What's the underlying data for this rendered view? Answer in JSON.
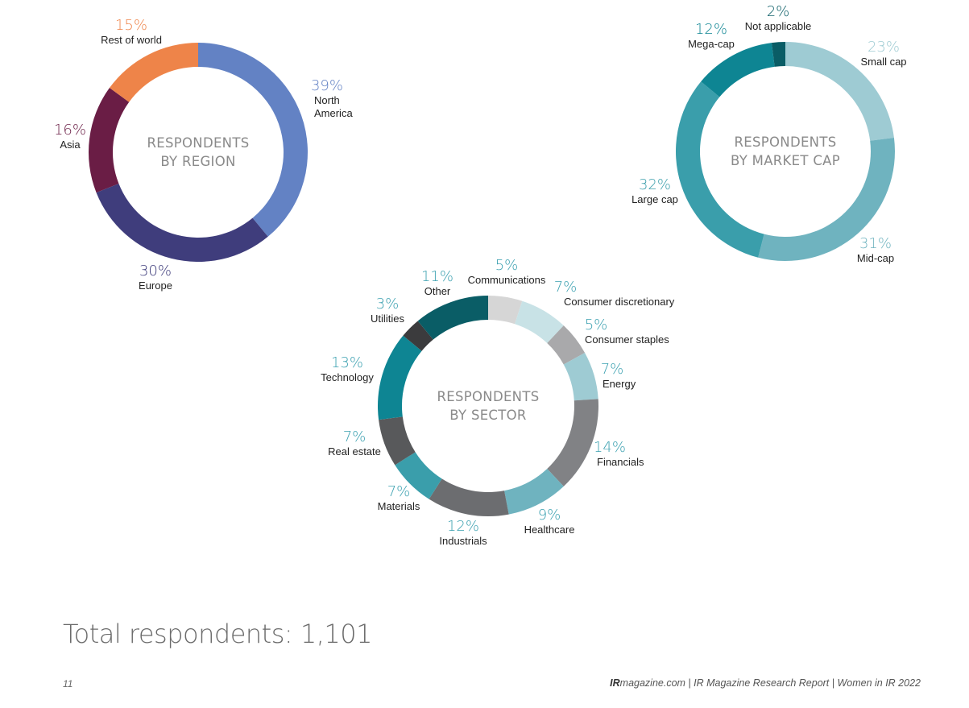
{
  "colors": {
    "pct_default": "#3aa0b0",
    "label": "#222222",
    "center_text": "#8a8a8a"
  },
  "chart_data": [
    {
      "type": "pie",
      "center_lines": [
        "RESPONDENTS",
        "BY REGION"
      ],
      "slices": [
        {
          "label": "North America",
          "label_lines": [
            "North",
            "America"
          ],
          "pct_text": "39%",
          "value": 39,
          "color": "#6382c4",
          "pct_color": "#6382c4"
        },
        {
          "label": "Europe",
          "label_lines": [
            "Europe"
          ],
          "pct_text": "30%",
          "value": 30,
          "color": "#3f3d7c",
          "pct_color": "#3f3d7c"
        },
        {
          "label": "Asia",
          "label_lines": [
            "Asia"
          ],
          "pct_text": "16%",
          "value": 16,
          "color": "#6a1d45",
          "pct_color": "#6a1d45"
        },
        {
          "label": "Rest of world",
          "label_lines": [
            "Rest of world"
          ],
          "pct_text": "15%",
          "value": 15,
          "color": "#ee8449",
          "pct_color": "#ee8449"
        }
      ]
    },
    {
      "type": "pie",
      "center_lines": [
        "RESPONDENTS",
        "BY MARKET CAP"
      ],
      "slices": [
        {
          "label": "Small cap",
          "label_lines": [
            "Small cap"
          ],
          "pct_text": "23%",
          "value": 23,
          "color": "#9ecbd3",
          "pct_color": "#9ecbd3"
        },
        {
          "label": "Mid-cap",
          "label_lines": [
            "Mid-cap"
          ],
          "pct_text": "31%",
          "value": 31,
          "color": "#6fb3bf",
          "pct_color": "#6fb3bf"
        },
        {
          "label": "Large cap",
          "label_lines": [
            "Large cap"
          ],
          "pct_text": "32%",
          "value": 32,
          "color": "#3a9eab",
          "pct_color": "#3a9eab"
        },
        {
          "label": "Mega-cap",
          "label_lines": [
            "Mega-cap"
          ],
          "pct_text": "12%",
          "value": 12,
          "color": "#0e8593",
          "pct_color": "#0e8593"
        },
        {
          "label": "Not applicable",
          "label_lines": [
            "Not applicable"
          ],
          "pct_text": "2%",
          "value": 2,
          "color": "#0a5d66",
          "pct_color": "#0a5d66"
        }
      ]
    },
    {
      "type": "pie",
      "center_lines": [
        "RESPONDENTS",
        "BY SECTOR"
      ],
      "slices": [
        {
          "label": "Communications",
          "label_lines": [
            "Communications"
          ],
          "pct_text": "5%",
          "value": 5,
          "color": "#d6d6d6",
          "pct_color": "#3aa0b0"
        },
        {
          "label": "Consumer discretionary",
          "label_lines": [
            "Consumer discretionary"
          ],
          "pct_text": "7%",
          "value": 7,
          "color": "#c8e2e6",
          "pct_color": "#3aa0b0"
        },
        {
          "label": "Consumer staples",
          "label_lines": [
            "Consumer staples"
          ],
          "pct_text": "5%",
          "value": 5,
          "color": "#a9a9ab",
          "pct_color": "#3aa0b0"
        },
        {
          "label": "Energy",
          "label_lines": [
            "Energy"
          ],
          "pct_text": "7%",
          "value": 7,
          "color": "#9ecbd3",
          "pct_color": "#3aa0b0"
        },
        {
          "label": "Financials",
          "label_lines": [
            "Financials"
          ],
          "pct_text": "14%",
          "value": 14,
          "color": "#818285",
          "pct_color": "#3aa0b0"
        },
        {
          "label": "Healthcare",
          "label_lines": [
            "Healthcare"
          ],
          "pct_text": "9%",
          "value": 9,
          "color": "#6fb3bf",
          "pct_color": "#3aa0b0"
        },
        {
          "label": "Industrials",
          "label_lines": [
            "Industrials"
          ],
          "pct_text": "12%",
          "value": 12,
          "color": "#6c6d70",
          "pct_color": "#3aa0b0"
        },
        {
          "label": "Materials",
          "label_lines": [
            "Materials"
          ],
          "pct_text": "7%",
          "value": 7,
          "color": "#3a9eab",
          "pct_color": "#3aa0b0"
        },
        {
          "label": "Real estate",
          "label_lines": [
            "Real estate"
          ],
          "pct_text": "7%",
          "value": 7,
          "color": "#58595b",
          "pct_color": "#3aa0b0"
        },
        {
          "label": "Technology",
          "label_lines": [
            "Technology"
          ],
          "pct_text": "13%",
          "value": 13,
          "color": "#0e8593",
          "pct_color": "#3aa0b0"
        },
        {
          "label": "Utilities",
          "label_lines": [
            "Utilities"
          ],
          "pct_text": "3%",
          "value": 3,
          "color": "#3b3b3d",
          "pct_color": "#3aa0b0"
        },
        {
          "label": "Other",
          "label_lines": [
            "Other"
          ],
          "pct_text": "11%",
          "value": 11,
          "color": "#0a5d66",
          "pct_color": "#3aa0b0"
        }
      ]
    }
  ],
  "summary": {
    "total_text": "Total respondents: 1,101"
  },
  "footer": {
    "page_number": "11",
    "site_bold": "IR",
    "site_rest": "magazine.com",
    "rest": " | IR Magazine Research Report | Women in IR 2022"
  }
}
